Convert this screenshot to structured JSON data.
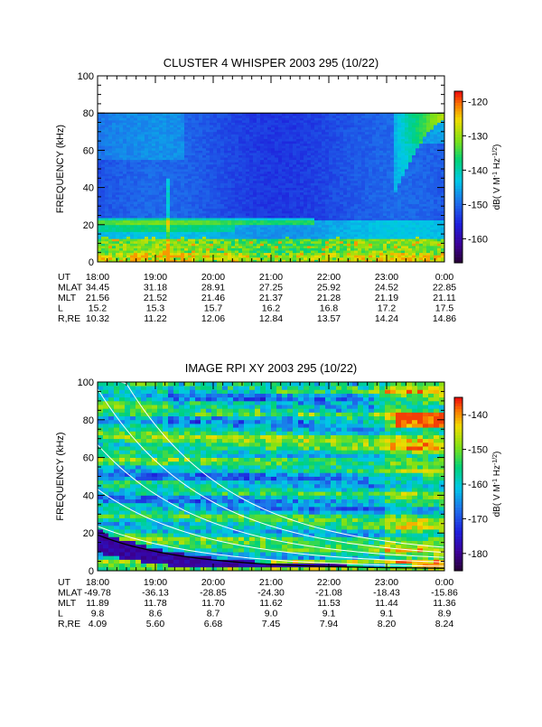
{
  "chart_data": [
    {
      "type": "heatmap",
      "title": "CLUSTER 4 WHISPER 2003 295 (10/22)",
      "ylabel": "FREQUENCY (kHz)",
      "ylim": [
        0,
        100
      ],
      "yticks": [
        "0",
        "20",
        "40",
        "60",
        "80",
        "100"
      ],
      "colorbar": {
        "label": "dB( V M⁻¹ Hz⁻¹ᐟ²)",
        "label_parts": [
          "dB( V M",
          "-1",
          " Hz",
          "-1/2",
          ")"
        ],
        "range": [
          -167,
          -117
        ],
        "ticks": [
          "-120",
          "-130",
          "-140",
          "-150",
          "-160"
        ],
        "tick_values": [
          -120,
          -130,
          -140,
          -150,
          -160
        ]
      },
      "time_labels": [
        "18:00",
        "19:00",
        "20:00",
        "21:00",
        "22:00",
        "23:00",
        "0:00"
      ],
      "ephemeris": [
        {
          "name": "UT",
          "values": [
            "18:00",
            "19:00",
            "20:00",
            "21:00",
            "22:00",
            "23:00",
            "0:00"
          ]
        },
        {
          "name": "MLAT",
          "values": [
            "34.45",
            "31.18",
            "28.91",
            "27.25",
            "25.92",
            "24.52",
            "22.85"
          ]
        },
        {
          "name": "MLT",
          "values": [
            "21.56",
            "21.52",
            "21.46",
            "21.37",
            "21.28",
            "21.19",
            "21.11"
          ]
        },
        {
          "name": "L",
          "values": [
            "15.2",
            "15.3",
            "15.7",
            "16.2",
            "16.8",
            "17.2",
            "17.5"
          ]
        },
        {
          "name": "R,RE",
          "values": [
            "10.32",
            "11.22",
            "12.06",
            "12.84",
            "13.57",
            "14.24",
            "14.86"
          ]
        }
      ],
      "data_upper_khz": 80
    },
    {
      "type": "heatmap",
      "title": "IMAGE RPI XY 2003 295 (10/22)",
      "ylabel": "FREQUENCY (kHz)",
      "ylim": [
        0,
        100
      ],
      "yticks": [
        "0",
        "20",
        "40",
        "60",
        "80",
        "100"
      ],
      "colorbar": {
        "label": "dB( V M⁻¹ Hz⁻¹ᐟ²)",
        "label_parts": [
          "dB( V M",
          "-1",
          " Hz",
          "-1/2",
          ")"
        ],
        "range": [
          -185,
          -135
        ],
        "ticks": [
          "-140",
          "-150",
          "-160",
          "-170",
          "-180"
        ],
        "tick_values": [
          -140,
          -150,
          -160,
          -170,
          -180
        ]
      },
      "time_labels": [
        "18:00",
        "19:00",
        "20:00",
        "21:00",
        "22:00",
        "23:00",
        "0:00"
      ],
      "ephemeris": [
        {
          "name": "UT",
          "values": [
            "18:00",
            "19:00",
            "20:00",
            "21:00",
            "22:00",
            "23:00",
            "0:00"
          ]
        },
        {
          "name": "MLAT",
          "values": [
            "-49.78",
            "-36.13",
            "-28.85",
            "-24.30",
            "-21.08",
            "-18.43",
            "-15.86"
          ]
        },
        {
          "name": "MLT",
          "values": [
            "11.89",
            "11.78",
            "11.70",
            "11.62",
            "11.53",
            "11.44",
            "11.36"
          ]
        },
        {
          "name": "L",
          "values": [
            "9.8",
            "8.6",
            "8.7",
            "9.0",
            "9.1",
            "9.1",
            "8.9"
          ]
        },
        {
          "name": "R,RE",
          "values": [
            "4.09",
            "5.60",
            "6.68",
            "7.45",
            "7.94",
            "8.20",
            "8.24"
          ]
        }
      ]
    }
  ]
}
